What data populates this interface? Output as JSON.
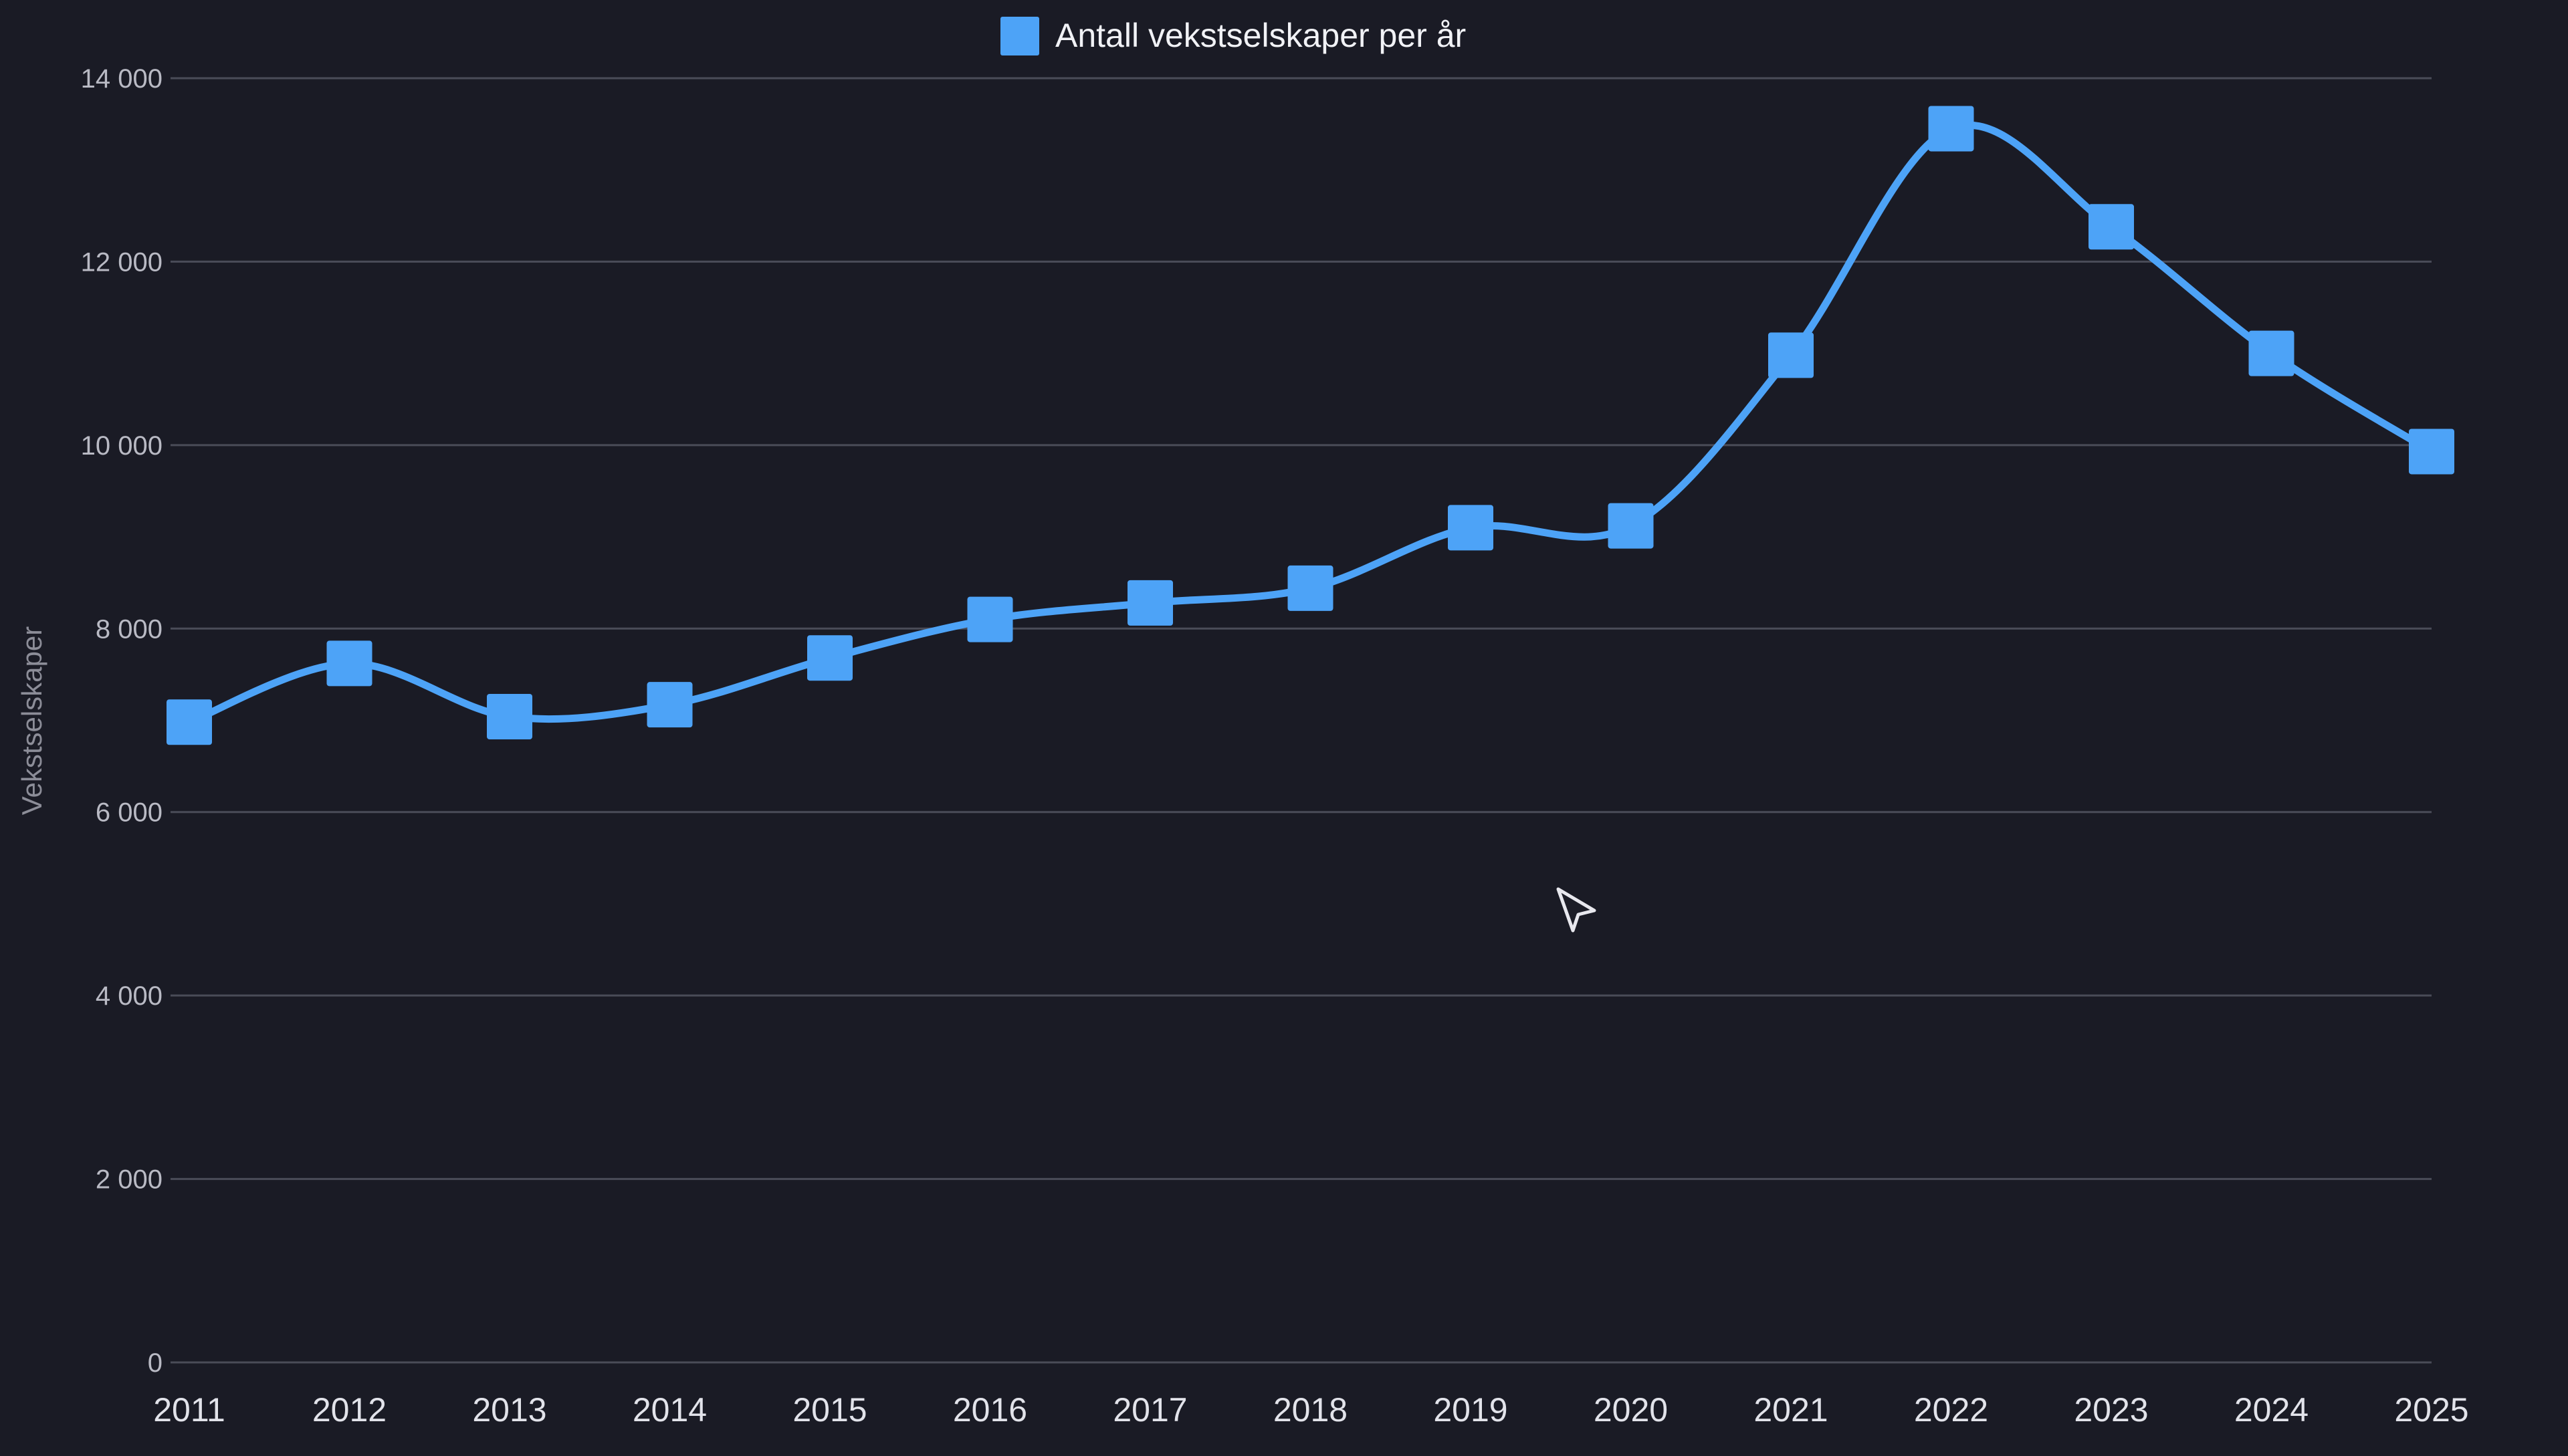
{
  "chart_data": {
    "type": "line",
    "title": "",
    "xlabel": "",
    "ylabel": "Vekstselskaper",
    "categories": [
      "2011",
      "2012",
      "2013",
      "2014",
      "2015",
      "2016",
      "2017",
      "2018",
      "2019",
      "2020",
      "2021",
      "2022",
      "2023",
      "2024",
      "2025"
    ],
    "series": [
      {
        "name": "Antall vekstselskaper per år",
        "values": [
          6980,
          7620,
          7040,
          7170,
          7680,
          8100,
          8280,
          8440,
          9100,
          9120,
          10980,
          13450,
          12380,
          11000,
          9930
        ]
      }
    ],
    "ylim": [
      0,
      14000
    ],
    "yticks": [
      0,
      2000,
      4000,
      6000,
      8000,
      10000,
      12000,
      14000
    ],
    "ytick_labels": [
      "0",
      "2 000",
      "4 000",
      "6 000",
      "8 000",
      "10 000",
      "12 000",
      "14 000"
    ],
    "grid": true,
    "legend_position": "top-center",
    "smooth": true,
    "marker": "square",
    "colors": {
      "background": "#1a1b25",
      "series": "#4da3f7",
      "grid": "#4a4c58"
    }
  }
}
